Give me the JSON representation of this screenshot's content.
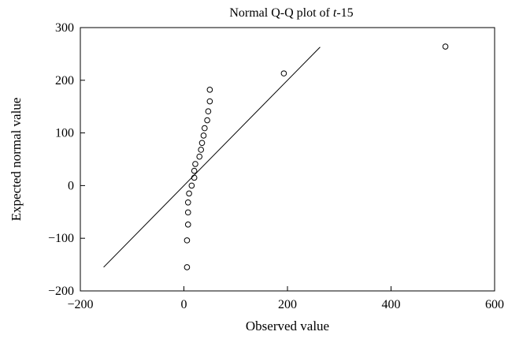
{
  "chart_data": {
    "type": "scatter",
    "title_prefix": "Normal Q-Q plot of ",
    "title_italic": "t",
    "title_suffix": "-15",
    "xlabel": "Observed value",
    "ylabel": "Expected normal value",
    "xlim": [
      -200,
      600
    ],
    "ylim": [
      -200,
      300
    ],
    "x_ticks": [
      -200,
      0,
      200,
      400,
      600
    ],
    "y_ticks": [
      -200,
      -100,
      0,
      100,
      200,
      300
    ],
    "x_tick_labels": [
      "−200",
      "0",
      "200",
      "400",
      "600"
    ],
    "y_tick_labels": [
      "−200",
      "−100",
      "0",
      "100",
      "200",
      "300"
    ],
    "grid": false,
    "marker": "open-circle",
    "reference_line": {
      "x": [
        -155,
        263
      ],
      "y": [
        -155,
        263
      ]
    },
    "points": [
      {
        "x": 6,
        "y": -155
      },
      {
        "x": 6,
        "y": -104
      },
      {
        "x": 8,
        "y": -74
      },
      {
        "x": 8,
        "y": -51
      },
      {
        "x": 8,
        "y": -32
      },
      {
        "x": 10,
        "y": -15
      },
      {
        "x": 15,
        "y": 0
      },
      {
        "x": 20,
        "y": 15
      },
      {
        "x": 20,
        "y": 28
      },
      {
        "x": 22,
        "y": 41
      },
      {
        "x": 30,
        "y": 55
      },
      {
        "x": 33,
        "y": 68
      },
      {
        "x": 35,
        "y": 81
      },
      {
        "x": 38,
        "y": 95
      },
      {
        "x": 40,
        "y": 109
      },
      {
        "x": 45,
        "y": 124
      },
      {
        "x": 47,
        "y": 141
      },
      {
        "x": 50,
        "y": 160
      },
      {
        "x": 50,
        "y": 182
      },
      {
        "x": 193,
        "y": 213
      },
      {
        "x": 505,
        "y": 264
      }
    ]
  }
}
